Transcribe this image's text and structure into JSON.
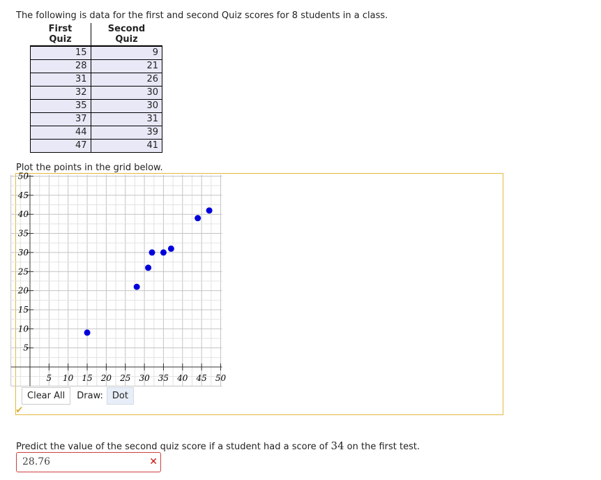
{
  "intro_text": "The following is data for the first and second Quiz scores for 8 students in a class.",
  "table": {
    "headers": [
      "First Quiz",
      "Second Quiz"
    ],
    "rows": [
      [
        15,
        9
      ],
      [
        28,
        21
      ],
      [
        31,
        26
      ],
      [
        32,
        30
      ],
      [
        35,
        30
      ],
      [
        37,
        31
      ],
      [
        44,
        39
      ],
      [
        47,
        41
      ]
    ]
  },
  "instruction": "Plot the points in the grid below.",
  "chart_data": {
    "type": "scatter",
    "x": [
      15,
      28,
      31,
      32,
      35,
      37,
      44,
      47
    ],
    "y": [
      9,
      21,
      26,
      30,
      30,
      31,
      39,
      41
    ],
    "xlim": [
      -5,
      50
    ],
    "ylim": [
      -5,
      50
    ],
    "x_ticks": [
      5,
      10,
      15,
      20,
      25,
      30,
      35,
      40,
      45,
      50
    ],
    "y_ticks": [
      5,
      10,
      15,
      20,
      25,
      30,
      35,
      40,
      45,
      50
    ],
    "grid": true,
    "point_color": "#0000dd"
  },
  "toolbar": {
    "clear_label": "Clear All",
    "draw_label": "Draw:",
    "dot_label": "Dot"
  },
  "question": {
    "before": "Predict the value of the second quiz score if a student had a score of",
    "value": "34",
    "after": "on the first test."
  },
  "answer": {
    "value": "28.76",
    "status_icon": "x-mark-icon"
  }
}
